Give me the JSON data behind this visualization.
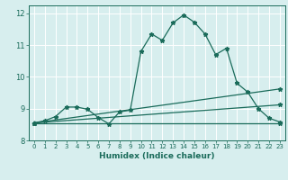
{
  "xlabel": "Humidex (Indice chaleur)",
  "background_color": "#d7eeee",
  "grid_color": "#ffffff",
  "line_color": "#1a6b5a",
  "xlim": [
    -0.5,
    23.5
  ],
  "ylim": [
    8.15,
    12.25
  ],
  "yticks": [
    8,
    9,
    10,
    11,
    12
  ],
  "xticks": [
    0,
    1,
    2,
    3,
    4,
    5,
    6,
    7,
    8,
    9,
    10,
    11,
    12,
    13,
    14,
    15,
    16,
    17,
    18,
    19,
    20,
    21,
    22,
    23
  ],
  "series1_x": [
    0,
    1,
    2,
    3,
    4,
    5,
    6,
    7,
    8,
    9,
    10,
    11,
    12,
    13,
    14,
    15,
    16,
    17,
    18,
    19,
    20,
    21,
    22,
    23
  ],
  "series1_y": [
    8.55,
    8.62,
    8.75,
    9.05,
    9.05,
    8.98,
    8.72,
    8.52,
    8.9,
    8.95,
    10.8,
    11.35,
    11.15,
    11.7,
    11.95,
    11.72,
    11.35,
    10.7,
    10.9,
    9.8,
    9.52,
    9.0,
    8.7,
    8.58
  ],
  "series2_x": [
    0,
    23
  ],
  "series2_y": [
    8.55,
    9.62
  ],
  "series3_x": [
    0,
    23
  ],
  "series3_y": [
    8.55,
    9.12
  ],
  "series4_x": [
    0,
    23
  ],
  "series4_y": [
    8.55,
    8.55
  ]
}
